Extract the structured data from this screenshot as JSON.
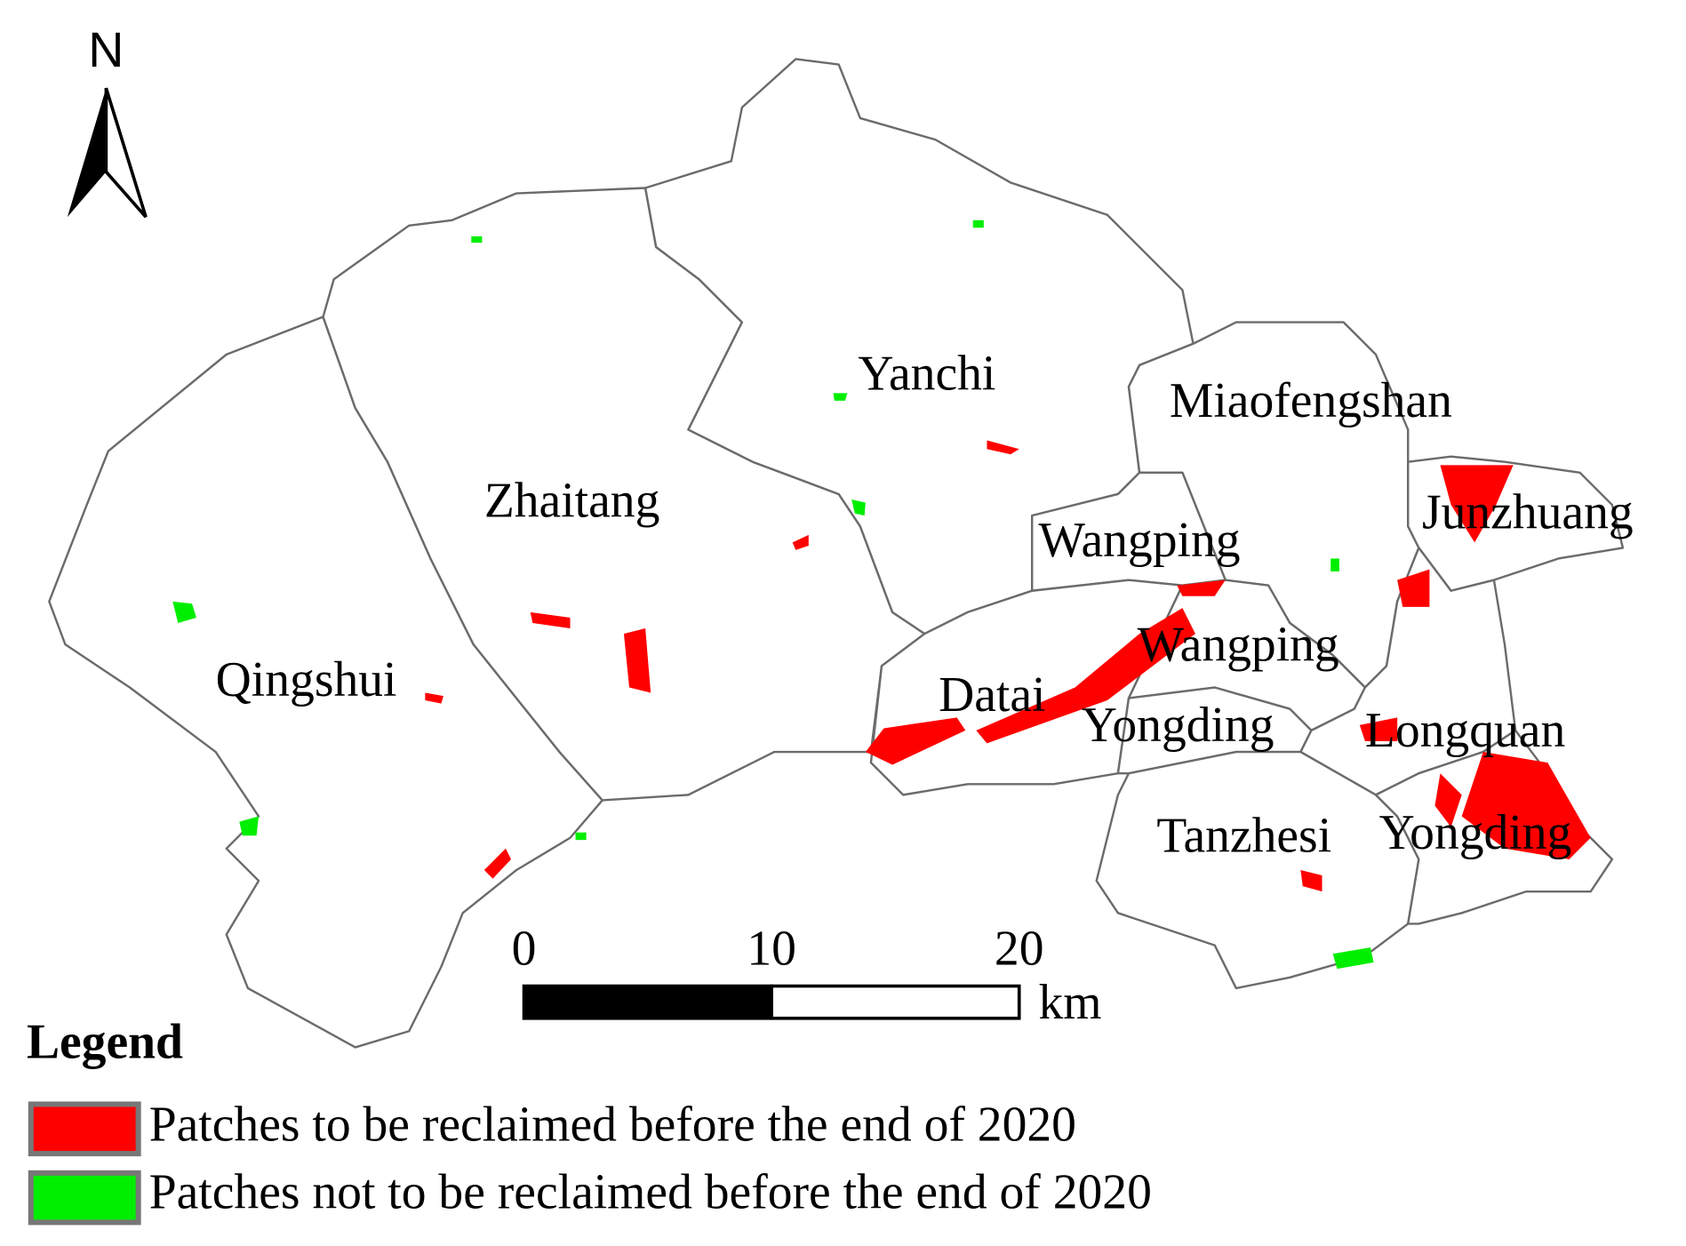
{
  "north_arrow": "N",
  "labels": [
    "Yanchi",
    "Miaofengshan",
    "Zhaitang",
    "Junzhuang",
    "Wangping",
    "Qingshui",
    "Wangping",
    "Datai",
    "Yongding",
    "Longquan",
    "Tanzhesi",
    "Yongding"
  ],
  "scale_bar": {
    "ticks": [
      0,
      10,
      20
    ],
    "unit": "km"
  },
  "legend": {
    "title": "Legend",
    "items": [
      "Patches to be reclaimed before the end of  2020",
      "Patches not to be reclaimed before the end of  2020"
    ]
  }
}
